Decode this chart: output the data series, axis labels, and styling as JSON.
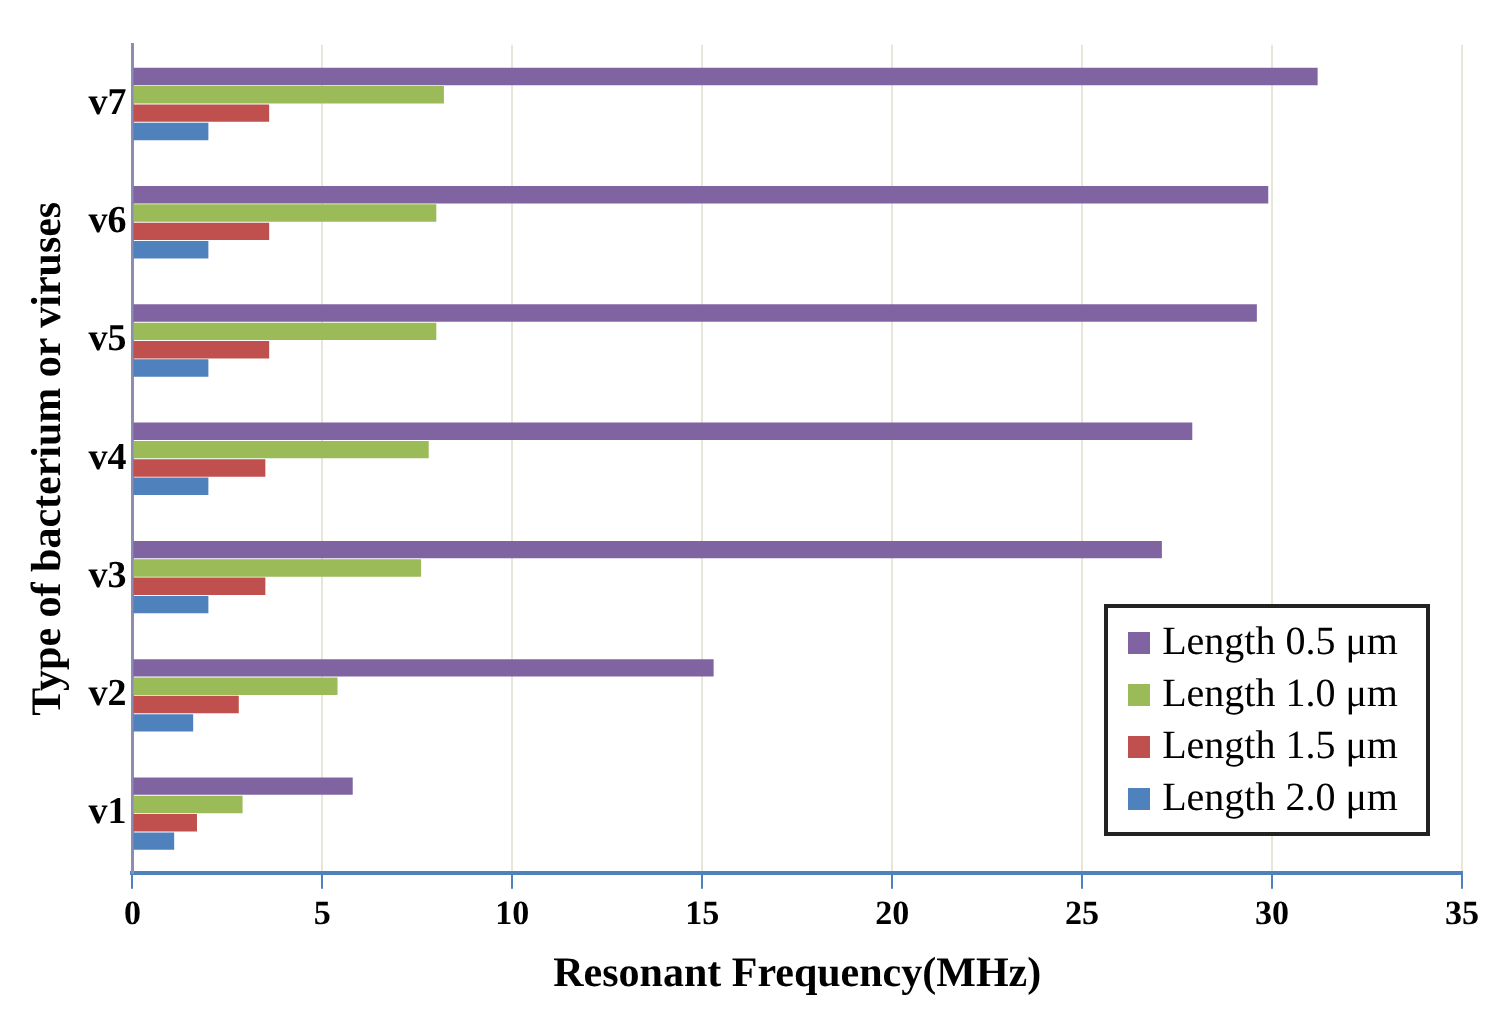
{
  "chart_data": {
    "type": "bar",
    "orientation": "horizontal",
    "xlabel": "Resonant Frequency(MHz)",
    "ylabel": "Type of bacterium or viruses",
    "categories": [
      "v7",
      "v6",
      "v5",
      "v4",
      "v3",
      "v2",
      "v1"
    ],
    "series": [
      {
        "name": "Length 0.5 μm",
        "color": "#8064a2",
        "values": [
          31.2,
          29.9,
          29.6,
          27.9,
          27.1,
          15.3,
          5.8
        ]
      },
      {
        "name": "Length 1.0 μm",
        "color": "#9bbb59",
        "values": [
          8.2,
          8.0,
          8.0,
          7.8,
          7.6,
          5.4,
          2.9
        ]
      },
      {
        "name": "Length 1.5 μm",
        "color": "#c0504d",
        "values": [
          3.6,
          3.6,
          3.6,
          3.5,
          3.5,
          2.8,
          1.7
        ]
      },
      {
        "name": "Length 2.0 μm",
        "color": "#4f81bd",
        "values": [
          2.0,
          2.0,
          2.0,
          2.0,
          2.0,
          1.6,
          1.1
        ]
      }
    ],
    "xlim": [
      0,
      35
    ],
    "xticks": [
      0,
      5,
      10,
      15,
      20,
      25,
      30,
      35
    ],
    "grid": "x",
    "legend": "bottom right"
  }
}
